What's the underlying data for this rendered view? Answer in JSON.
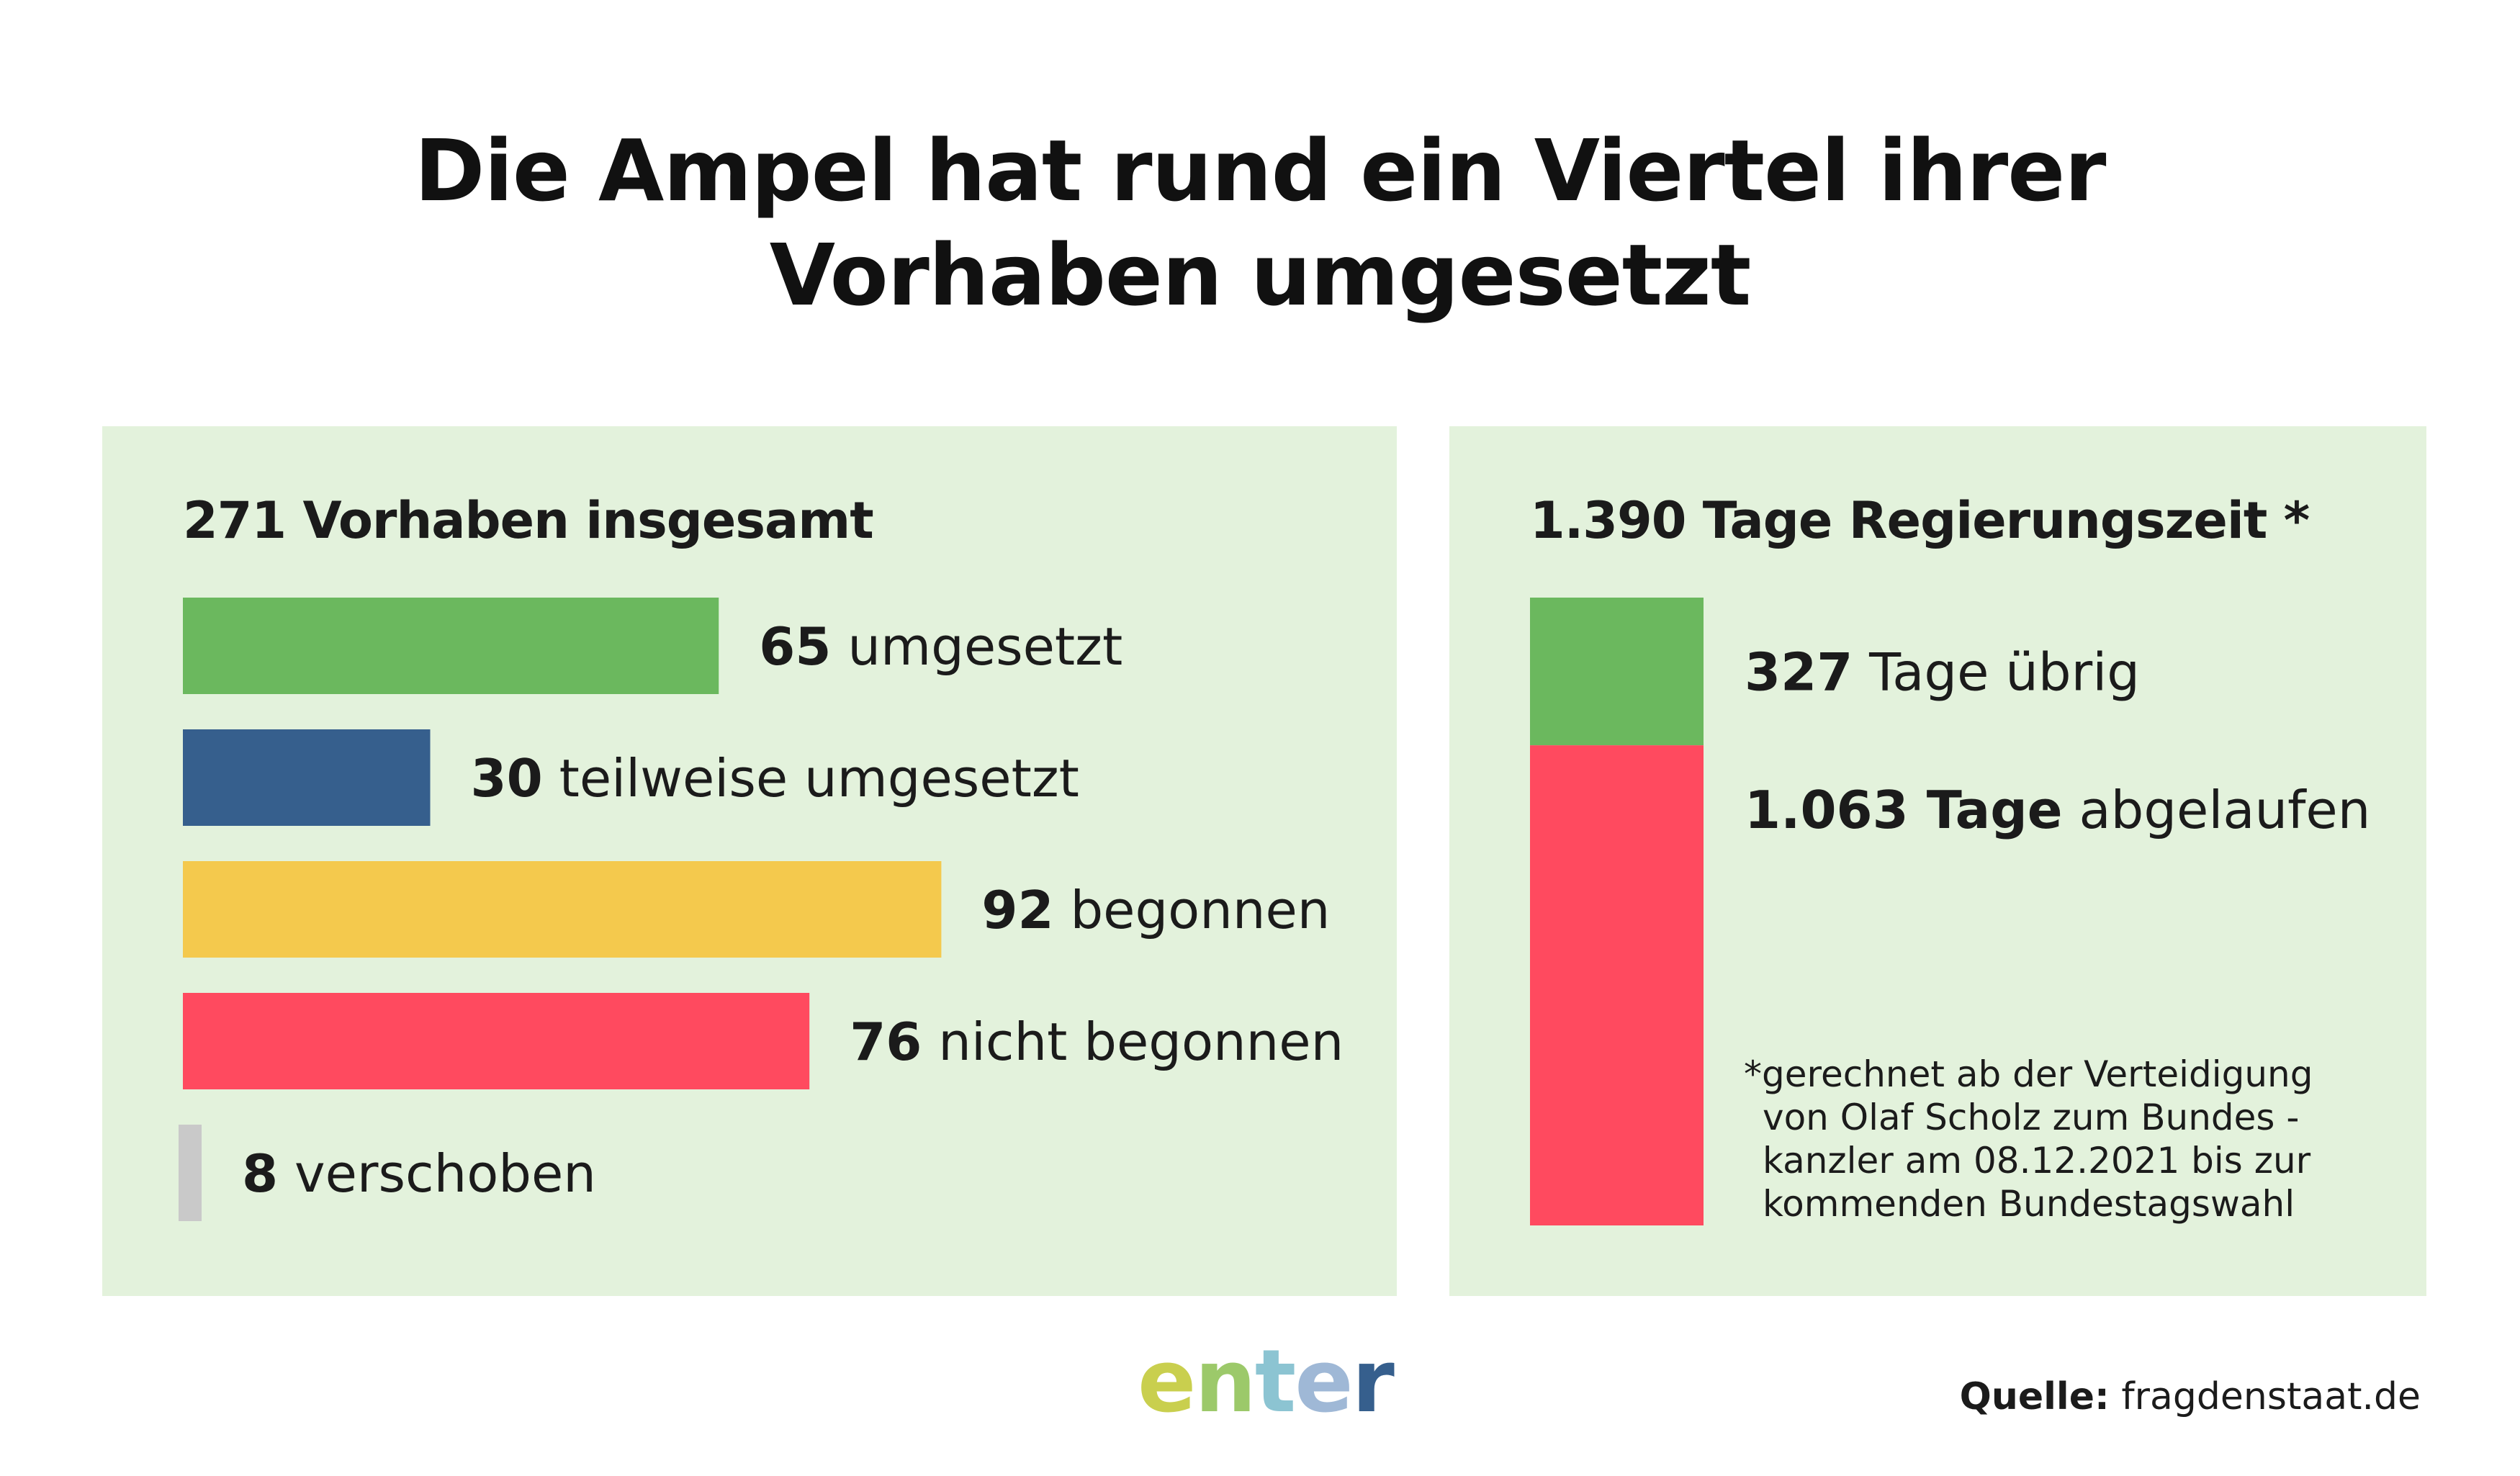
{
  "title": {
    "line1": "Die Ampel hat rund ein Viertel ihrer",
    "line2": "Vorhaben umgesetzt"
  },
  "left_panel": {
    "heading_number": "271",
    "heading_text": " Vorhaben insgesamt"
  },
  "right_panel": {
    "heading_number": "1.390 Tage",
    "heading_text": " Regierungszeit *",
    "footnote": [
      "*gerechnet ab der Verteidigung",
      "von Olaf Scholz zum Bundes -",
      "kanzler am 08.12.2021 bis zur",
      "kommenden Bundestagswahl"
    ]
  },
  "chart_data": [
    {
      "type": "bar",
      "orientation": "horizontal",
      "total": 271,
      "categories": [
        "umgesetzt",
        "teilweise umgesetzt",
        "begonnen",
        "nicht begonnen",
        "verschoben"
      ],
      "values": [
        65,
        30,
        92,
        76,
        8
      ],
      "colors": [
        "#6bb85e",
        "#365f8d",
        "#f4c94d",
        "#ff4a5f",
        "#c9c9c9"
      ],
      "labels": [
        {
          "number": "65",
          "text": " umgesetzt"
        },
        {
          "number": "30",
          "text": " teilweise umgesetzt"
        },
        {
          "number": "92",
          "text": " begonnen"
        },
        {
          "number": "76",
          "text": " nicht begonnen"
        },
        {
          "number": "8",
          "text": " verschoben"
        }
      ]
    },
    {
      "type": "bar",
      "orientation": "vertical-stacked",
      "total": 1390,
      "categories": [
        "Tage übrig",
        "Tage abgelaufen"
      ],
      "values": [
        327,
        1063
      ],
      "colors": [
        "#6bb85e",
        "#ff4a5f"
      ],
      "labels": [
        {
          "number": "327",
          "text": " Tage übrig"
        },
        {
          "number": "1.063 Tage",
          "text": " abgelaufen"
        }
      ]
    }
  ],
  "logo": {
    "letters": [
      "e",
      "n",
      "t",
      "e",
      "r"
    ],
    "colors": [
      "#c9cf4e",
      "#9cc96a",
      "#8cc4d2",
      "#9fb8d6",
      "#365f8d"
    ]
  },
  "source": {
    "label": "Quelle:",
    "value": " fragdenstaat.de"
  }
}
